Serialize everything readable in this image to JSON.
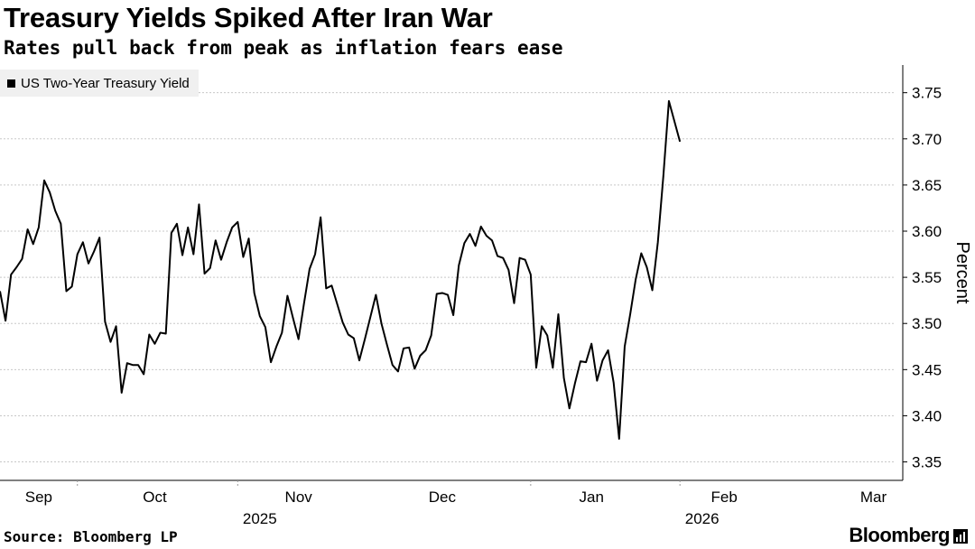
{
  "title": "Treasury Yields Spiked After Iran War",
  "subtitle": "Rates pull back from peak as inflation fears ease",
  "source": "Source: Bloomberg LP",
  "brand": "Bloomberg",
  "brand_icon": "bloomberg-chart-icon",
  "colors": {
    "line": "#000000",
    "grid": "#c8c8c8",
    "legend_bg": "#f0f0f0"
  },
  "chart_data": {
    "type": "line",
    "title": "Treasury Yields Spiked After Iran War",
    "xlabel": "",
    "ylabel": "Percent",
    "ylim": [
      3.33,
      3.78
    ],
    "xlim": [
      0,
      162
    ],
    "yticks": [
      3.35,
      3.4,
      3.45,
      3.5,
      3.55,
      3.6,
      3.65,
      3.7,
      3.75
    ],
    "ytick_labels": [
      "3.35",
      "3.40",
      "3.45",
      "3.50",
      "3.55",
      "3.60",
      "3.65",
      "3.70",
      "3.75"
    ],
    "month_ticks": [
      {
        "label": "Sep",
        "x": 7
      },
      {
        "label": "Oct",
        "x": 28
      },
      {
        "label": "Nov",
        "x": 54
      },
      {
        "label": "Dec",
        "x": 80
      },
      {
        "label": "Jan",
        "x": 107
      },
      {
        "label": "Feb",
        "x": 131
      },
      {
        "label": "Mar",
        "x": 158
      }
    ],
    "year_labels": [
      {
        "label": "2025",
        "x": 47
      },
      {
        "label": "2026",
        "x": 127
      }
    ],
    "year_separators": [
      14,
      43,
      96,
      123
    ],
    "legend": [
      "US Two-Year Treasury Yield"
    ],
    "series": [
      {
        "name": "US Two-Year Treasury Yield",
        "values": [
          3.535,
          3.503,
          3.553,
          3.561,
          3.57,
          3.602,
          3.586,
          3.604,
          3.655,
          3.642,
          3.622,
          3.608,
          3.535,
          3.54,
          3.575,
          3.588,
          3.565,
          3.578,
          3.593,
          3.502,
          3.48,
          3.497,
          3.425,
          3.457,
          3.455,
          3.455,
          3.445,
          3.488,
          3.478,
          3.49,
          3.489,
          3.598,
          3.608,
          3.574,
          3.604,
          3.575,
          3.629,
          3.554,
          3.56,
          3.59,
          3.569,
          3.588,
          3.604,
          3.61,
          3.572,
          3.592,
          3.533,
          3.508,
          3.496,
          3.458,
          3.475,
          3.49,
          3.53,
          3.506,
          3.483,
          3.522,
          3.559,
          3.575,
          3.615,
          3.538,
          3.541,
          3.521,
          3.501,
          3.488,
          3.484,
          3.46,
          3.483,
          3.507,
          3.531,
          3.5,
          3.477,
          3.455,
          3.448,
          3.473,
          3.474,
          3.451,
          3.465,
          3.471,
          3.487,
          3.532,
          3.533,
          3.531,
          3.509,
          3.563,
          3.587,
          3.597,
          3.584,
          3.605,
          3.595,
          3.59,
          3.573,
          3.571,
          3.558,
          3.522,
          3.571,
          3.569,
          3.553,
          3.452,
          3.497,
          3.487,
          3.452,
          3.51,
          3.441,
          3.408,
          3.435,
          3.459,
          3.458,
          3.478,
          3.438,
          3.46,
          3.471,
          3.436,
          3.375,
          3.475,
          3.51,
          3.548,
          3.576,
          3.561,
          3.536,
          3.588,
          3.66,
          3.741,
          3.719,
          3.697
        ]
      }
    ]
  }
}
